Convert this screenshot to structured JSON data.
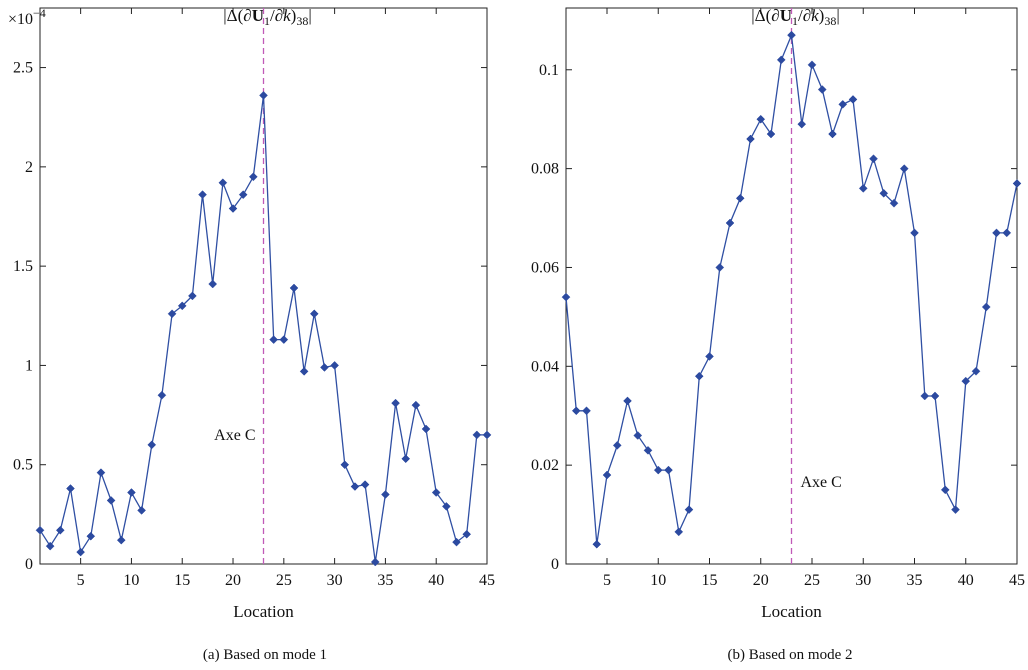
{
  "colors": {
    "series": "#2f4fa3",
    "marker": "#2c4aa0",
    "axe_line": "#c05ab8",
    "axis": "#222222"
  },
  "chart_data": [
    {
      "type": "line",
      "title": "|Δ(∂U1/∂k)38|",
      "title_parts": {
        "open": "|Δ(∂",
        "bold": "U",
        "sub1": "1",
        "mid": "/∂",
        "italic": "k",
        "close": ")",
        "sub2": "38",
        "end": "|"
      },
      "scale_label": {
        "base": "×10",
        "exponent": "−4"
      },
      "xlabel": "Location",
      "ylabel": "",
      "caption": "(a)  Based on mode 1",
      "xlim": [
        1,
        45
      ],
      "ylim": [
        0,
        2.8
      ],
      "xticks": [
        5,
        10,
        15,
        20,
        25,
        30,
        35,
        40,
        45
      ],
      "xtick_labels": [
        "5",
        "10",
        "15",
        "20",
        "25",
        "30",
        "35",
        "40",
        "45"
      ],
      "yticks": [
        0,
        0.5,
        1,
        1.5,
        2,
        2.5
      ],
      "ytick_labels": [
        "0",
        "0.5",
        "1",
        "1.5",
        "2",
        "2.5"
      ],
      "grid": false,
      "series": [
        {
          "x": [
            1,
            2,
            3,
            4,
            5,
            6,
            7,
            8,
            9,
            10,
            11,
            12,
            13,
            14,
            15,
            16,
            17,
            18,
            19,
            20,
            21,
            22,
            23,
            24,
            25,
            26,
            27,
            28,
            29,
            30,
            31,
            32,
            33,
            34,
            35,
            36,
            37,
            38,
            39,
            40,
            41,
            42,
            43,
            44,
            45
          ],
          "y": [
            0.17,
            0.09,
            0.17,
            0.38,
            0.06,
            0.14,
            0.46,
            0.32,
            0.12,
            0.36,
            0.27,
            0.6,
            0.85,
            1.26,
            1.3,
            1.35,
            1.86,
            1.41,
            1.92,
            1.79,
            1.86,
            1.95,
            2.36,
            1.13,
            1.13,
            1.39,
            0.97,
            1.26,
            0.99,
            1.0,
            0.5,
            0.39,
            0.4,
            0.01,
            0.35,
            0.81,
            0.53,
            0.8,
            0.68,
            0.36,
            0.29,
            0.11,
            0.15,
            0.65,
            0.65
          ]
        }
      ],
      "annotations": [
        {
          "text": "Axe C",
          "x": 23
        }
      ]
    },
    {
      "type": "line",
      "title": "|Δ(∂U1/∂k)38|",
      "title_parts": {
        "open": "|Δ(∂",
        "bold": "U",
        "sub1": "1",
        "mid": "/∂",
        "italic": "k",
        "close": ")",
        "sub2": "38",
        "end": "|"
      },
      "xlabel": "Location",
      "ylabel": "",
      "caption": "(b)  Based on mode 2",
      "xlim": [
        1,
        45
      ],
      "ylim": [
        0,
        0.1125
      ],
      "xticks": [
        5,
        10,
        15,
        20,
        25,
        30,
        35,
        40,
        45
      ],
      "xtick_labels": [
        "5",
        "10",
        "15",
        "20",
        "25",
        "30",
        "35",
        "40",
        "45"
      ],
      "yticks": [
        0,
        0.02,
        0.04,
        0.06,
        0.08,
        0.1
      ],
      "ytick_labels": [
        "0",
        "0.02",
        "0.04",
        "0.06",
        "0.08",
        "0.1"
      ],
      "grid": false,
      "series": [
        {
          "x": [
            1,
            2,
            3,
            4,
            5,
            6,
            7,
            8,
            9,
            10,
            11,
            12,
            13,
            14,
            15,
            16,
            17,
            18,
            19,
            20,
            21,
            22,
            23,
            24,
            25,
            26,
            27,
            28,
            29,
            30,
            31,
            32,
            33,
            34,
            35,
            36,
            37,
            38,
            39,
            40,
            41,
            42,
            43,
            44,
            45
          ],
          "y": [
            0.054,
            0.031,
            0.031,
            0.004,
            0.018,
            0.024,
            0.033,
            0.026,
            0.023,
            0.019,
            0.019,
            0.0065,
            0.011,
            0.038,
            0.042,
            0.06,
            0.069,
            0.074,
            0.086,
            0.09,
            0.087,
            0.102,
            0.107,
            0.089,
            0.101,
            0.096,
            0.087,
            0.093,
            0.094,
            0.076,
            0.082,
            0.075,
            0.073,
            0.08,
            0.067,
            0.034,
            0.034,
            0.015,
            0.011,
            0.037,
            0.039,
            0.052,
            0.067,
            0.067,
            0.077
          ]
        }
      ],
      "annotations": [
        {
          "text": "Axe C",
          "x": 23
        }
      ]
    }
  ]
}
